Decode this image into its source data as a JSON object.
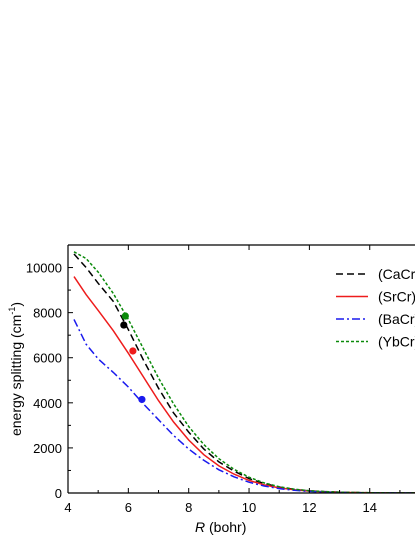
{
  "chart_data": {
    "type": "line",
    "xlabel_italic": "R",
    "xlabel_rest": " (bohr)",
    "ylabel_main": "energy splitting (cm",
    "ylabel_sup": "-1",
    "ylabel_close": ")",
    "xlim": [
      4,
      15.5
    ],
    "ylim": [
      0,
      11000
    ],
    "x_ticks": [
      4,
      6,
      8,
      10,
      12,
      14
    ],
    "y_ticks": [
      0,
      2000,
      4000,
      6000,
      8000,
      10000
    ],
    "grid": false,
    "legend_position": "top-right",
    "series": [
      {
        "name": "(CaCr)",
        "color": "#000000",
        "dash": "7,4",
        "x": [
          4.2,
          4.6,
          5.0,
          5.5,
          6.0,
          6.5,
          7.0,
          7.5,
          8.0,
          8.5,
          9.0,
          9.5,
          10.0,
          10.5,
          11.0,
          11.5,
          12.0,
          12.5,
          13.0,
          13.5,
          14.0,
          14.5,
          15.0,
          15.5
        ],
        "y": [
          10600,
          10000,
          9300,
          8500,
          7250,
          5900,
          4650,
          3550,
          2700,
          1950,
          1380,
          970,
          640,
          420,
          260,
          160,
          95,
          60,
          35,
          20,
          12,
          8,
          5,
          3
        ],
        "marker": {
          "x": 5.85,
          "y": 7450,
          "color": "#000000"
        }
      },
      {
        "name": "(SrCr)",
        "color": "#ee1c1c",
        "dash": "",
        "x": [
          4.2,
          4.6,
          5.0,
          5.5,
          6.0,
          6.5,
          7.0,
          7.5,
          8.0,
          8.5,
          9.0,
          9.5,
          10.0,
          10.5,
          11.0,
          11.5,
          12.0,
          12.5,
          13.0,
          13.5,
          14.0,
          14.5,
          15.0,
          15.5
        ],
        "y": [
          9600,
          8800,
          8100,
          7200,
          6200,
          5150,
          4100,
          3150,
          2350,
          1700,
          1200,
          840,
          560,
          360,
          225,
          140,
          85,
          50,
          30,
          18,
          11,
          7,
          4,
          2
        ],
        "marker": {
          "x": 6.15,
          "y": 6300,
          "color": "#ee1c1c"
        }
      },
      {
        "name": "(BaCr)",
        "color": "#1a1aee",
        "dash": "8,3,2,3",
        "x": [
          4.2,
          4.6,
          5.0,
          5.5,
          6.0,
          6.5,
          7.0,
          7.5,
          8.0,
          8.5,
          9.0,
          9.5,
          10.0,
          10.5,
          11.0,
          11.5,
          12.0,
          12.5,
          13.0,
          13.5,
          14.0,
          14.5,
          15.0,
          15.5
        ],
        "y": [
          7700,
          6600,
          5950,
          5350,
          4700,
          3950,
          3250,
          2550,
          1950,
          1450,
          1030,
          720,
          480,
          310,
          195,
          120,
          72,
          42,
          25,
          15,
          9,
          6,
          3,
          2
        ],
        "marker": {
          "x": 6.45,
          "y": 4150,
          "color": "#1a1aee"
        }
      },
      {
        "name": "(YbCr)",
        "color": "#0a8a0a",
        "dash": "3,2",
        "x": [
          4.2,
          4.6,
          5.0,
          5.5,
          6.0,
          6.5,
          7.0,
          7.5,
          8.0,
          8.5,
          9.0,
          9.5,
          10.0,
          10.5,
          11.0,
          11.5,
          12.0,
          12.5,
          13.0,
          13.5,
          14.0,
          14.5,
          15.0,
          15.5
        ],
        "y": [
          10700,
          10400,
          9800,
          8850,
          7700,
          6400,
          5100,
          3950,
          2950,
          2150,
          1520,
          1050,
          700,
          450,
          280,
          170,
          100,
          60,
          35,
          20,
          12,
          8,
          5,
          3
        ],
        "marker": {
          "x": 5.9,
          "y": 7850,
          "color": "#0a8a0a"
        }
      }
    ]
  }
}
